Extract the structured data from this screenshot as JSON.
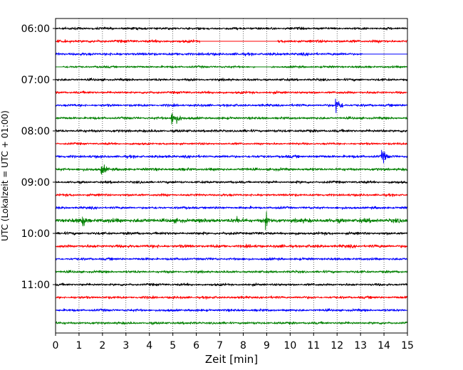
{
  "chart_data": {
    "type": "line",
    "title": "",
    "xlabel": "Zeit  [min]",
    "ylabel": "UTC (Lokalzeit = UTC + 01:00)",
    "xlim": [
      0,
      15
    ],
    "x_ticks": [
      0,
      1,
      2,
      3,
      4,
      5,
      6,
      7,
      8,
      9,
      10,
      11,
      12,
      13,
      14,
      15
    ],
    "x_tick_labels": [
      "0",
      "1",
      "2",
      "3",
      "4",
      "5",
      "6",
      "7",
      "8",
      "9",
      "10",
      "11",
      "12",
      "13",
      "14",
      "15"
    ],
    "y_tick_labels": [
      "06:00",
      "07:00",
      "08:00",
      "09:00",
      "10:00",
      "11:00"
    ],
    "y_tick_trace_index": [
      0,
      4,
      8,
      12,
      16,
      20
    ],
    "grid": "x-dotted",
    "series": [
      {
        "start": "06:00",
        "color": "#000000",
        "amplitude": 0.9,
        "gaps": [],
        "events": []
      },
      {
        "start": "06:15",
        "color": "#ff0000",
        "amplitude": 1.0,
        "gaps": [
          [
            6.15,
            9.45
          ]
        ],
        "events": []
      },
      {
        "start": "06:30",
        "color": "#0000ff",
        "amplitude": 1.0,
        "gaps": [
          [
            13.1,
            15
          ]
        ],
        "events": []
      },
      {
        "start": "06:45",
        "color": "#008000",
        "amplitude": 0.8,
        "gaps": [
          [
            0,
            0.3
          ],
          [
            8.5,
            9.2
          ]
        ],
        "events": []
      },
      {
        "start": "07:00",
        "color": "#000000",
        "amplitude": 0.9,
        "gaps": [],
        "events": []
      },
      {
        "start": "07:15",
        "color": "#ff0000",
        "amplitude": 0.9,
        "gaps": [],
        "events": []
      },
      {
        "start": "07:30",
        "color": "#0000ff",
        "amplitude": 0.9,
        "gaps": [],
        "events": [
          {
            "t": 11.95,
            "amp": 9,
            "dur": 0.6
          }
        ]
      },
      {
        "start": "07:45",
        "color": "#008000",
        "amplitude": 0.9,
        "gaps": [],
        "events": [
          {
            "t": 4.95,
            "amp": 8,
            "dur": 0.9
          }
        ]
      },
      {
        "start": "08:00",
        "color": "#000000",
        "amplitude": 1.0,
        "gaps": [],
        "events": [
          {
            "t": 13.95,
            "amp": 3,
            "dur": 0.2
          }
        ]
      },
      {
        "start": "08:15",
        "color": "#ff0000",
        "amplitude": 0.8,
        "gaps": [],
        "events": []
      },
      {
        "start": "08:30",
        "color": "#0000ff",
        "amplitude": 1.0,
        "gaps": [],
        "events": [
          {
            "t": 13.9,
            "amp": 8,
            "dur": 0.6
          }
        ]
      },
      {
        "start": "08:45",
        "color": "#008000",
        "amplitude": 1.0,
        "gaps": [],
        "events": [
          {
            "t": 1.95,
            "amp": 6,
            "dur": 0.7
          }
        ]
      },
      {
        "start": "09:00",
        "color": "#000000",
        "amplitude": 0.9,
        "gaps": [],
        "events": []
      },
      {
        "start": "09:15",
        "color": "#ff0000",
        "amplitude": 0.9,
        "gaps": [],
        "events": []
      },
      {
        "start": "09:30",
        "color": "#0000ff",
        "amplitude": 0.9,
        "gaps": [],
        "events": []
      },
      {
        "start": "09:45",
        "color": "#008000",
        "amplitude": 1.5,
        "gaps": [],
        "events": [
          {
            "t": 1.15,
            "amp": 11,
            "dur": 0.3
          },
          {
            "t": 7.75,
            "amp": 5,
            "dur": 0.2
          },
          {
            "t": 8.95,
            "amp": 11,
            "dur": 0.3
          }
        ]
      },
      {
        "start": "10:00",
        "color": "#000000",
        "amplitude": 1.0,
        "gaps": [],
        "events": []
      },
      {
        "start": "10:15",
        "color": "#ff0000",
        "amplitude": 1.1,
        "gaps": [],
        "events": []
      },
      {
        "start": "10:30",
        "color": "#0000ff",
        "amplitude": 0.9,
        "gaps": [],
        "events": []
      },
      {
        "start": "10:45",
        "color": "#008000",
        "amplitude": 0.9,
        "gaps": [],
        "events": []
      },
      {
        "start": "11:00",
        "color": "#000000",
        "amplitude": 0.9,
        "gaps": [],
        "events": []
      },
      {
        "start": "11:15",
        "color": "#ff0000",
        "amplitude": 0.9,
        "gaps": [],
        "events": []
      },
      {
        "start": "11:30",
        "color": "#0000ff",
        "amplitude": 0.9,
        "gaps": [],
        "events": []
      },
      {
        "start": "11:45",
        "color": "#008000",
        "amplitude": 0.9,
        "gaps": [],
        "events": []
      }
    ]
  }
}
